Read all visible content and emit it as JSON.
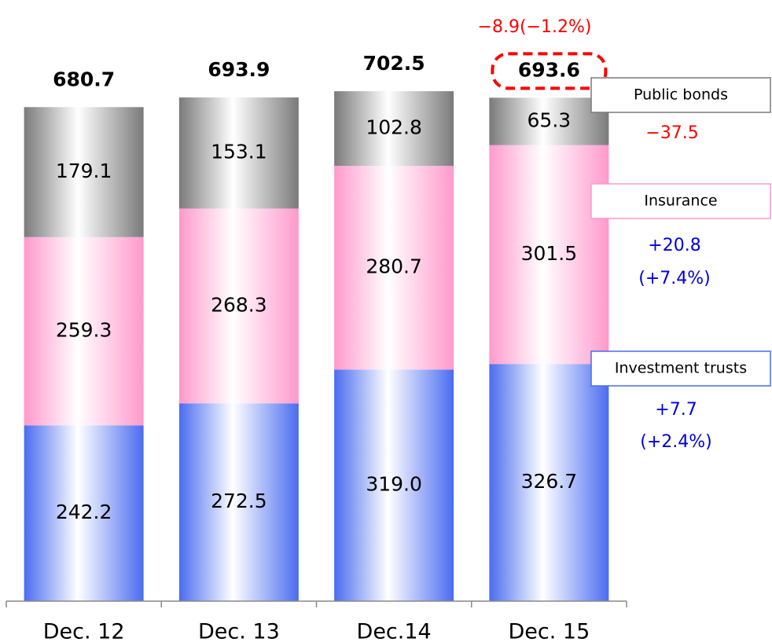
{
  "chart_data": {
    "type": "stacked_bar",
    "categories": [
      "Dec. 12",
      "Dec. 13",
      "Dec.14",
      "Dec. 15"
    ],
    "series": [
      {
        "name": "Investment trusts",
        "color": "#4a6cf0",
        "values": [
          242.2,
          272.5,
          319.0,
          326.7
        ],
        "value_labels": [
          "242.2",
          "272.5",
          "319.0",
          "326.7"
        ]
      },
      {
        "name": "Insurance",
        "color": "#ff99cc",
        "values": [
          259.3,
          268.3,
          280.7,
          301.5
        ],
        "value_labels": [
          "259.3",
          "268.3",
          "280.7",
          "301.5"
        ]
      },
      {
        "name": "Public bonds",
        "color": "#7a7a7a",
        "values": [
          179.1,
          153.1,
          102.8,
          65.3
        ],
        "value_labels": [
          "179.1",
          "153.1",
          "102.8",
          "65.3"
        ]
      }
    ],
    "totals": [
      680.7,
      693.9,
      702.5,
      693.6
    ],
    "ylim": [
      0,
      800
    ],
    "annotations": [
      {
        "text": "−8.9(−1.2%)",
        "color": "#ff0000"
      },
      {
        "text": "−37.5",
        "color": "#ff0000"
      },
      {
        "text": "+20.8",
        "color": "#0000dd"
      },
      {
        "text": "(+7.4%)",
        "color": "#0000dd"
      },
      {
        "text": "+7.7",
        "color": "#0000dd"
      },
      {
        "text": "(+2.4%)",
        "color": "#0000dd"
      }
    ]
  }
}
